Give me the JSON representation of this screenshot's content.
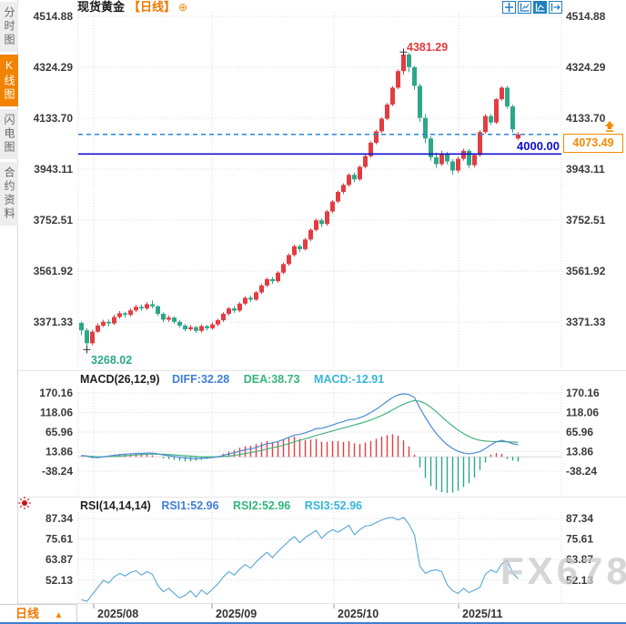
{
  "header": {
    "symbol": "现货黄金",
    "period_tag": "【日线】",
    "plus_icon": "⊕"
  },
  "toolbar": {
    "icons": [
      "crosshair-move-icon",
      "axis-scale-icon",
      "auto-follow-icon",
      "exit-right-icon"
    ]
  },
  "sidebar": {
    "tabs": [
      {
        "label": "分时图",
        "active": false
      },
      {
        "label": "K线图",
        "active": true
      },
      {
        "label": "闪电图",
        "active": false
      },
      {
        "label": "合约资料",
        "active": false
      }
    ]
  },
  "bottom_bar": {
    "period": "日线",
    "arrow": "▲"
  },
  "watermark": {
    "text": "FX678"
  },
  "colors": {
    "up_red": "#e23d42",
    "down_green": "#2da78a",
    "grid": "#d9d9d9",
    "diff_blue": "#4a8bd4",
    "dea_green": "#46b27e",
    "rsi_blue": "#56a5d8",
    "dashed_blue": "#2e86d6",
    "hline_blue": "#1212cc",
    "orange": "#f18a00",
    "axis_text": "#3a3a3a",
    "divider": "#e4e4e4",
    "tick": "#999999"
  },
  "chart_data": [
    {
      "type": "candlestick",
      "title": "现货黄金 日线",
      "y_ticks": [
        4514.88,
        4324.29,
        4133.7,
        3943.11,
        3752.51,
        3561.92,
        3371.33
      ],
      "x_ticks": [
        "2025/08",
        "2025/09",
        "2025/10",
        "2025/11"
      ],
      "month_tick_x": [
        103,
        233,
        367,
        504
      ],
      "high_label": {
        "text": "4381.29",
        "value": 4381.29,
        "index": 59
      },
      "low_label": {
        "text": "3268.02",
        "value": 3268.02,
        "index": 1
      },
      "last_price_label": "4073.49",
      "current_price": 4073.49,
      "hline_label": "4000.00",
      "hline_value": 4000.0,
      "candles": [
        [
          3368,
          3374,
          3322,
          3340
        ],
        [
          3340,
          3348,
          3268.02,
          3292
        ],
        [
          3292,
          3342,
          3285,
          3335
        ],
        [
          3335,
          3366,
          3330,
          3358
        ],
        [
          3358,
          3380,
          3352,
          3372
        ],
        [
          3372,
          3381,
          3355,
          3366
        ],
        [
          3366,
          3398,
          3360,
          3390
        ],
        [
          3390,
          3412,
          3384,
          3404
        ],
        [
          3404,
          3410,
          3388,
          3398
        ],
        [
          3398,
          3422,
          3392,
          3415
        ],
        [
          3415,
          3436,
          3408,
          3428
        ],
        [
          3428,
          3437,
          3414,
          3422
        ],
        [
          3422,
          3446,
          3416,
          3438
        ],
        [
          3438,
          3452,
          3422,
          3430
        ],
        [
          3430,
          3434,
          3394,
          3402
        ],
        [
          3402,
          3408,
          3370,
          3380
        ],
        [
          3380,
          3396,
          3372,
          3388
        ],
        [
          3388,
          3392,
          3364,
          3372
        ],
        [
          3372,
          3378,
          3350,
          3358
        ],
        [
          3358,
          3364,
          3336,
          3344
        ],
        [
          3344,
          3360,
          3338,
          3352
        ],
        [
          3352,
          3356,
          3330,
          3338
        ],
        [
          3338,
          3362,
          3332,
          3356
        ],
        [
          3356,
          3360,
          3340,
          3348
        ],
        [
          3348,
          3370,
          3342,
          3362
        ],
        [
          3362,
          3384,
          3356,
          3378
        ],
        [
          3378,
          3408,
          3372,
          3402
        ],
        [
          3402,
          3428,
          3396,
          3422
        ],
        [
          3422,
          3430,
          3406,
          3414
        ],
        [
          3414,
          3446,
          3408,
          3440
        ],
        [
          3440,
          3468,
          3434,
          3462
        ],
        [
          3462,
          3470,
          3446,
          3455
        ],
        [
          3455,
          3488,
          3450,
          3482
        ],
        [
          3482,
          3514,
          3476,
          3508
        ],
        [
          3508,
          3538,
          3502,
          3532
        ],
        [
          3532,
          3540,
          3514,
          3524
        ],
        [
          3524,
          3562,
          3518,
          3556
        ],
        [
          3556,
          3594,
          3550,
          3588
        ],
        [
          3588,
          3628,
          3582,
          3622
        ],
        [
          3622,
          3661,
          3616,
          3655
        ],
        [
          3655,
          3662,
          3634,
          3644
        ],
        [
          3644,
          3686,
          3638,
          3680
        ],
        [
          3680,
          3722,
          3674,
          3716
        ],
        [
          3716,
          3758,
          3710,
          3752
        ],
        [
          3752,
          3760,
          3726,
          3738
        ],
        [
          3738,
          3791,
          3732,
          3785
        ],
        [
          3785,
          3828,
          3779,
          3822
        ],
        [
          3822,
          3864,
          3816,
          3858
        ],
        [
          3858,
          3890,
          3850,
          3884
        ],
        [
          3884,
          3928,
          3878,
          3922
        ],
        [
          3922,
          3930,
          3894,
          3905
        ],
        [
          3905,
          3958,
          3899,
          3952
        ],
        [
          3952,
          3998,
          3946,
          3992
        ],
        [
          3992,
          4048,
          3986,
          4042
        ],
        [
          4042,
          4091,
          4036,
          4085
        ],
        [
          4085,
          4138,
          4079,
          4132
        ],
        [
          4132,
          4191,
          4126,
          4185
        ],
        [
          4185,
          4254,
          4179,
          4248
        ],
        [
          4248,
          4316,
          4242,
          4310
        ],
        [
          4310,
          4381.29,
          4296,
          4372
        ],
        [
          4372,
          4378,
          4306,
          4325
        ],
        [
          4325,
          4330,
          4240,
          4255
        ],
        [
          4255,
          4262,
          4120,
          4135
        ],
        [
          4135,
          4150,
          4040,
          4058
        ],
        [
          4058,
          4066,
          3975,
          3988
        ],
        [
          3988,
          4005,
          3948,
          3962
        ],
        [
          3962,
          4012,
          3955,
          4002
        ],
        [
          4002,
          4008,
          3960,
          3972
        ],
        [
          3972,
          3980,
          3922,
          3938
        ],
        [
          3938,
          3990,
          3930,
          3982
        ],
        [
          3982,
          4020,
          3975,
          4012
        ],
        [
          4012,
          4018,
          3948,
          3958
        ],
        [
          3958,
          4002,
          3950,
          3996
        ],
        [
          3996,
          4088,
          3990,
          4082
        ],
        [
          4082,
          4148,
          4076,
          4142
        ],
        [
          4142,
          4150,
          4108,
          4118
        ],
        [
          4118,
          4210,
          4112,
          4205
        ],
        [
          4205,
          4254,
          4199,
          4248
        ],
        [
          4248,
          4255,
          4170,
          4178
        ],
        [
          4178,
          4184,
          4080,
          4092
        ],
        [
          4058,
          4082,
          4052,
          4073.49
        ]
      ]
    },
    {
      "type": "macd-histogram-lines",
      "title": "MACD(26,12,9)",
      "legend": {
        "diff": "DIFF:32.28",
        "dea": "DEA:38.73",
        "macd": "MACD:-12.91"
      },
      "y_ticks": [
        170.16,
        118.06,
        65.96,
        13.86,
        -38.24
      ],
      "diff": [
        4,
        2,
        -1,
        -2,
        0,
        2,
        4,
        6,
        7,
        8,
        9,
        9,
        10,
        10,
        8,
        5,
        3,
        1,
        -1,
        -3,
        -4,
        -5,
        -4,
        -3,
        -2,
        0,
        4,
        8,
        11,
        15,
        19,
        21,
        25,
        30,
        35,
        37,
        41,
        46,
        52,
        58,
        60,
        64,
        69,
        75,
        76,
        80,
        85,
        90,
        94,
        99,
        100,
        104,
        110,
        118,
        127,
        137,
        148,
        158,
        165,
        168,
        166,
        158,
        130,
        105,
        82,
        62,
        46,
        32,
        22,
        15,
        10,
        8,
        10,
        14,
        22,
        32,
        40,
        44,
        40,
        35,
        32.28
      ],
      "dea": [
        3,
        2,
        1,
        0,
        0,
        1,
        1,
        2,
        3,
        4,
        5,
        6,
        7,
        7,
        7,
        7,
        6,
        5,
        4,
        3,
        2,
        1,
        0,
        0,
        0,
        0,
        1,
        2,
        4,
        6,
        9,
        11,
        14,
        17,
        21,
        24,
        27,
        31,
        35,
        40,
        44,
        48,
        52,
        57,
        61,
        65,
        69,
        73,
        77,
        81,
        85,
        89,
        93,
        98,
        104,
        110,
        117,
        125,
        133,
        140,
        146,
        150,
        148,
        142,
        132,
        120,
        107,
        94,
        82,
        71,
        62,
        54,
        48,
        44,
        42,
        41,
        40.5,
        40.5,
        40,
        39.5,
        38.73
      ],
      "hist": [
        2,
        0,
        -4,
        -4,
        0,
        2,
        6,
        8,
        8,
        8,
        8,
        6,
        6,
        4,
        0,
        -4,
        -6,
        -8,
        -10,
        -12,
        -12,
        -10,
        -8,
        -6,
        -2,
        2,
        8,
        14,
        18,
        24,
        28,
        30,
        34,
        38,
        42,
        40,
        42,
        46,
        50,
        54,
        48,
        44,
        46,
        48,
        40,
        40,
        42,
        42,
        40,
        42,
        36,
        34,
        38,
        42,
        48,
        54,
        58,
        60,
        56,
        44,
        28,
        6,
        -28,
        -56,
        -78,
        -88,
        -94,
        -96,
        -95,
        -90,
        -80,
        -70,
        -55,
        -35,
        -15,
        6,
        10,
        8,
        -6,
        -10,
        -12.91
      ]
    },
    {
      "type": "line",
      "title": "RSI(14,14,14)",
      "legend": {
        "rsi1": "RSI1:52.96",
        "rsi2": "RSI2:52.96",
        "rsi3": "RSI3:52.96"
      },
      "y_ticks": [
        87.34,
        75.61,
        63.87,
        52.13
      ],
      "rsi": [
        41,
        40,
        44,
        48,
        52,
        50.5,
        54,
        56,
        54.5,
        56.5,
        57.5,
        55,
        57,
        55.5,
        49,
        45.5,
        47.5,
        44.5,
        42,
        43.5,
        46,
        42.5,
        46.5,
        44,
        47,
        50,
        54,
        57,
        55,
        58.5,
        61,
        59,
        62.5,
        65.5,
        68,
        65,
        68.5,
        71.5,
        74.5,
        77,
        73.5,
        76.5,
        78.5,
        80.5,
        76,
        79,
        81,
        79.5,
        81.5,
        83.5,
        78,
        81,
        83,
        83.5,
        85,
        86.5,
        87.5,
        88,
        86.5,
        88,
        84,
        78,
        60,
        56,
        57.5,
        58,
        57,
        49.5,
        46,
        44.5,
        47.5,
        45,
        46.5,
        48,
        55.5,
        58,
        56.5,
        61.5,
        63.5,
        56,
        52.96
      ]
    }
  ]
}
